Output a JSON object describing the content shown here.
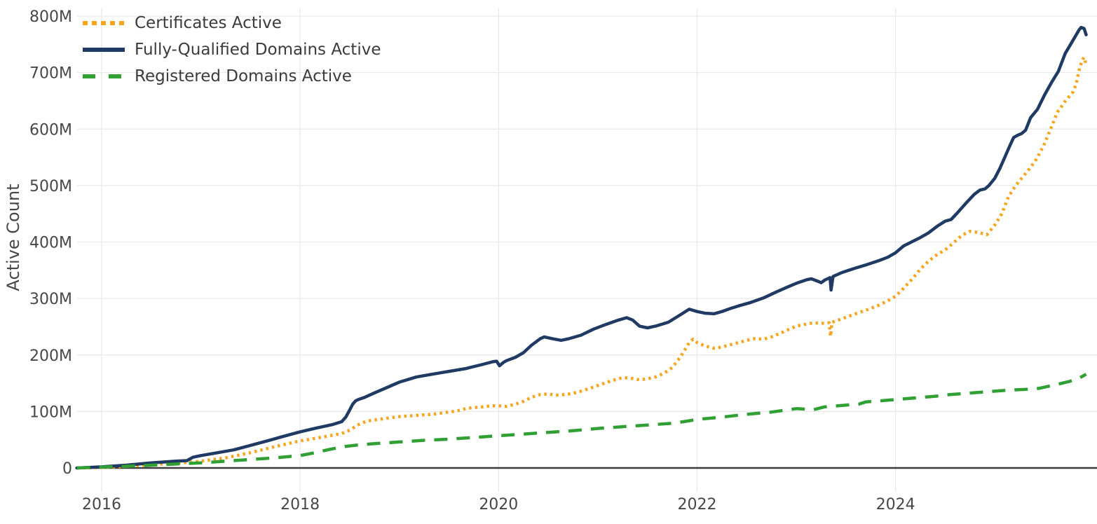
{
  "chart_data": {
    "type": "line",
    "title": "",
    "xlabel": "",
    "units": "millions",
    "grid": true,
    "legend_position": "top-left",
    "colors": {
      "background": "#ffffff",
      "gridline": "#e9e9ec",
      "zero_axis_line": "#3d3d3d",
      "tick_text": "#474747"
    },
    "x_axis": {
      "range_years": [
        2015.73,
        2026.03
      ],
      "ticks": [
        {
          "value": 2016,
          "label": "2016"
        },
        {
          "value": 2018,
          "label": "2018"
        },
        {
          "value": 2020,
          "label": "2020"
        },
        {
          "value": 2022,
          "label": "2022"
        },
        {
          "value": 2024,
          "label": "2024"
        }
      ]
    },
    "y_axis": {
      "title": "Active Count",
      "range_millions": [
        0,
        830
      ],
      "ticks": [
        {
          "value": 0,
          "label": "0"
        },
        {
          "value": 100,
          "label": "100M"
        },
        {
          "value": 200,
          "label": "200M"
        },
        {
          "value": 300,
          "label": "300M"
        },
        {
          "value": 400,
          "label": "400M"
        },
        {
          "value": 500,
          "label": "500M"
        },
        {
          "value": 600,
          "label": "600M"
        },
        {
          "value": 700,
          "label": "700M"
        },
        {
          "value": 800,
          "label": "800M"
        }
      ]
    },
    "series": [
      {
        "name": "Certificates Active",
        "color": "#f6a51f",
        "dash": "dotted",
        "points": [
          [
            2015.75,
            0
          ],
          [
            2016,
            0.7
          ],
          [
            2016.25,
            3
          ],
          [
            2016.5,
            6
          ],
          [
            2016.75,
            8
          ],
          [
            2017,
            12
          ],
          [
            2017.25,
            18
          ],
          [
            2017.5,
            27
          ],
          [
            2017.75,
            38
          ],
          [
            2018,
            48
          ],
          [
            2018.17,
            53
          ],
          [
            2018.33,
            58
          ],
          [
            2018.42,
            61
          ],
          [
            2018.5,
            67
          ],
          [
            2018.58,
            76
          ],
          [
            2018.67,
            83
          ],
          [
            2018.75,
            85
          ],
          [
            2018.83,
            87
          ],
          [
            2018.92,
            89
          ],
          [
            2019,
            91
          ],
          [
            2019.17,
            93
          ],
          [
            2019.33,
            95
          ],
          [
            2019.5,
            99
          ],
          [
            2019.58,
            101
          ],
          [
            2019.67,
            105
          ],
          [
            2019.75,
            107
          ],
          [
            2019.83,
            108
          ],
          [
            2019.92,
            110
          ],
          [
            2020,
            110
          ],
          [
            2020.08,
            109
          ],
          [
            2020.17,
            113
          ],
          [
            2020.25,
            118
          ],
          [
            2020.33,
            125
          ],
          [
            2020.42,
            130
          ],
          [
            2020.5,
            131
          ],
          [
            2020.58,
            129
          ],
          [
            2020.67,
            130
          ],
          [
            2020.75,
            132
          ],
          [
            2020.83,
            136
          ],
          [
            2020.92,
            141
          ],
          [
            2021,
            146
          ],
          [
            2021.08,
            151
          ],
          [
            2021.17,
            156
          ],
          [
            2021.25,
            160
          ],
          [
            2021.33,
            159
          ],
          [
            2021.42,
            156
          ],
          [
            2021.5,
            158
          ],
          [
            2021.58,
            161
          ],
          [
            2021.67,
            168
          ],
          [
            2021.75,
            178
          ],
          [
            2021.83,
            196
          ],
          [
            2021.88,
            210
          ],
          [
            2021.92,
            222
          ],
          [
            2021.96,
            228
          ],
          [
            2022,
            222
          ],
          [
            2022.08,
            216
          ],
          [
            2022.17,
            212
          ],
          [
            2022.25,
            214
          ],
          [
            2022.33,
            218
          ],
          [
            2022.42,
            222
          ],
          [
            2022.5,
            226
          ],
          [
            2022.58,
            229
          ],
          [
            2022.67,
            228
          ],
          [
            2022.75,
            232
          ],
          [
            2022.83,
            238
          ],
          [
            2022.92,
            245
          ],
          [
            2023,
            251
          ],
          [
            2023.08,
            254
          ],
          [
            2023.17,
            257
          ],
          [
            2023.25,
            256
          ],
          [
            2023.33,
            257
          ],
          [
            2023.345,
            233
          ],
          [
            2023.36,
            258
          ],
          [
            2023.46,
            264
          ],
          [
            2023.58,
            272
          ],
          [
            2023.71,
            280
          ],
          [
            2023.83,
            288
          ],
          [
            2023.92,
            296
          ],
          [
            2024,
            304
          ],
          [
            2024.08,
            318
          ],
          [
            2024.17,
            335
          ],
          [
            2024.25,
            352
          ],
          [
            2024.33,
            366
          ],
          [
            2024.42,
            378
          ],
          [
            2024.5,
            386
          ],
          [
            2024.58,
            398
          ],
          [
            2024.67,
            412
          ],
          [
            2024.75,
            419
          ],
          [
            2024.83,
            417
          ],
          [
            2024.92,
            413
          ],
          [
            2025,
            430
          ],
          [
            2025.07,
            450
          ],
          [
            2025.14,
            481
          ],
          [
            2025.21,
            500
          ],
          [
            2025.28,
            515
          ],
          [
            2025.35,
            530
          ],
          [
            2025.42,
            547
          ],
          [
            2025.49,
            570
          ],
          [
            2025.56,
            599
          ],
          [
            2025.63,
            630
          ],
          [
            2025.68,
            642
          ],
          [
            2025.72,
            652
          ],
          [
            2025.76,
            660
          ],
          [
            2025.79,
            666
          ],
          [
            2025.82,
            680
          ],
          [
            2025.85,
            705
          ],
          [
            2025.88,
            722
          ],
          [
            2025.9,
            727
          ],
          [
            2025.92,
            714
          ]
        ]
      },
      {
        "name": "Fully-Qualified Domains Active",
        "color": "#1f3b63",
        "dash": "solid",
        "points": [
          [
            2015.75,
            0
          ],
          [
            2016,
            2
          ],
          [
            2016.25,
            5
          ],
          [
            2016.5,
            9
          ],
          [
            2016.75,
            12
          ],
          [
            2016.86,
            13
          ],
          [
            2016.92,
            19
          ],
          [
            2017,
            22
          ],
          [
            2017.17,
            27
          ],
          [
            2017.33,
            32
          ],
          [
            2017.5,
            40
          ],
          [
            2017.67,
            48
          ],
          [
            2017.83,
            56
          ],
          [
            2018,
            64
          ],
          [
            2018.17,
            71
          ],
          [
            2018.33,
            77
          ],
          [
            2018.42,
            82
          ],
          [
            2018.46,
            90
          ],
          [
            2018.5,
            103
          ],
          [
            2018.53,
            113
          ],
          [
            2018.56,
            119
          ],
          [
            2018.6,
            122
          ],
          [
            2018.65,
            125
          ],
          [
            2018.75,
            133
          ],
          [
            2018.87,
            142
          ],
          [
            2019,
            152
          ],
          [
            2019.17,
            161
          ],
          [
            2019.33,
            166
          ],
          [
            2019.5,
            171
          ],
          [
            2019.67,
            176
          ],
          [
            2019.83,
            183
          ],
          [
            2019.94,
            188
          ],
          [
            2019.98,
            189
          ],
          [
            2020.01,
            181
          ],
          [
            2020.05,
            187
          ],
          [
            2020.08,
            190
          ],
          [
            2020.17,
            196
          ],
          [
            2020.25,
            204
          ],
          [
            2020.33,
            217
          ],
          [
            2020.42,
            229
          ],
          [
            2020.46,
            232
          ],
          [
            2020.54,
            229
          ],
          [
            2020.63,
            226
          ],
          [
            2020.71,
            229
          ],
          [
            2020.83,
            235
          ],
          [
            2020.96,
            246
          ],
          [
            2021.08,
            254
          ],
          [
            2021.21,
            262
          ],
          [
            2021.29,
            266
          ],
          [
            2021.35,
            262
          ],
          [
            2021.42,
            251
          ],
          [
            2021.5,
            248
          ],
          [
            2021.58,
            251
          ],
          [
            2021.71,
            258
          ],
          [
            2021.83,
            271
          ],
          [
            2021.92,
            281
          ],
          [
            2022,
            277
          ],
          [
            2022.08,
            274
          ],
          [
            2022.17,
            273
          ],
          [
            2022.25,
            277
          ],
          [
            2022.33,
            282
          ],
          [
            2022.42,
            287
          ],
          [
            2022.54,
            293
          ],
          [
            2022.67,
            301
          ],
          [
            2022.79,
            311
          ],
          [
            2022.92,
            321
          ],
          [
            2023,
            327
          ],
          [
            2023.1,
            333
          ],
          [
            2023.15,
            335
          ],
          [
            2023.21,
            331
          ],
          [
            2023.25,
            328
          ],
          [
            2023.29,
            333
          ],
          [
            2023.34,
            337
          ],
          [
            2023.35,
            315
          ],
          [
            2023.37,
            339
          ],
          [
            2023.46,
            346
          ],
          [
            2023.58,
            353
          ],
          [
            2023.71,
            360
          ],
          [
            2023.83,
            367
          ],
          [
            2023.92,
            373
          ],
          [
            2024,
            381
          ],
          [
            2024.08,
            393
          ],
          [
            2024.17,
            401
          ],
          [
            2024.25,
            408
          ],
          [
            2024.33,
            416
          ],
          [
            2024.42,
            428
          ],
          [
            2024.5,
            437
          ],
          [
            2024.56,
            440
          ],
          [
            2024.63,
            453
          ],
          [
            2024.71,
            469
          ],
          [
            2024.79,
            484
          ],
          [
            2024.85,
            492
          ],
          [
            2024.9,
            494
          ],
          [
            2024.94,
            500
          ],
          [
            2025,
            513
          ],
          [
            2025.05,
            530
          ],
          [
            2025.1,
            550
          ],
          [
            2025.15,
            570
          ],
          [
            2025.19,
            585
          ],
          [
            2025.23,
            589
          ],
          [
            2025.27,
            592
          ],
          [
            2025.31,
            598
          ],
          [
            2025.36,
            620
          ],
          [
            2025.43,
            635
          ],
          [
            2025.5,
            660
          ],
          [
            2025.57,
            682
          ],
          [
            2025.64,
            702
          ],
          [
            2025.71,
            734
          ],
          [
            2025.78,
            755
          ],
          [
            2025.85,
            776
          ],
          [
            2025.87,
            780
          ],
          [
            2025.9,
            778
          ],
          [
            2025.92,
            767
          ]
        ]
      },
      {
        "name": "Registered Domains Active",
        "color": "#30a035",
        "dash": "dashed",
        "points": [
          [
            2015.75,
            0
          ],
          [
            2016,
            1.5
          ],
          [
            2016.25,
            3
          ],
          [
            2016.5,
            5
          ],
          [
            2016.75,
            7
          ],
          [
            2017,
            9
          ],
          [
            2017.25,
            12
          ],
          [
            2017.5,
            15
          ],
          [
            2017.75,
            18
          ],
          [
            2018,
            22
          ],
          [
            2018.15,
            27
          ],
          [
            2018.3,
            33
          ],
          [
            2018.45,
            38
          ],
          [
            2018.6,
            41
          ],
          [
            2018.75,
            43
          ],
          [
            2019,
            46
          ],
          [
            2019.25,
            49
          ],
          [
            2019.5,
            51
          ],
          [
            2019.75,
            54
          ],
          [
            2020,
            57
          ],
          [
            2020.25,
            60
          ],
          [
            2020.5,
            63
          ],
          [
            2020.75,
            66
          ],
          [
            2021,
            70
          ],
          [
            2021.25,
            73
          ],
          [
            2021.5,
            76
          ],
          [
            2021.75,
            79
          ],
          [
            2021.9,
            83
          ],
          [
            2022,
            86
          ],
          [
            2022.25,
            90
          ],
          [
            2022.5,
            95
          ],
          [
            2022.75,
            99
          ],
          [
            2023,
            105
          ],
          [
            2023.1,
            104
          ],
          [
            2023.17,
            103
          ],
          [
            2023.28,
            108
          ],
          [
            2023.42,
            110
          ],
          [
            2023.55,
            112
          ],
          [
            2023.63,
            113
          ],
          [
            2023.7,
            117
          ],
          [
            2023.85,
            119
          ],
          [
            2024,
            121
          ],
          [
            2024.2,
            124
          ],
          [
            2024.4,
            127
          ],
          [
            2024.55,
            130
          ],
          [
            2024.7,
            132
          ],
          [
            2024.85,
            134
          ],
          [
            2025,
            136
          ],
          [
            2025.15,
            138
          ],
          [
            2025.3,
            139
          ],
          [
            2025.45,
            141
          ],
          [
            2025.55,
            145
          ],
          [
            2025.65,
            149
          ],
          [
            2025.75,
            153
          ],
          [
            2025.85,
            159
          ],
          [
            2025.92,
            166
          ]
        ]
      }
    ]
  }
}
